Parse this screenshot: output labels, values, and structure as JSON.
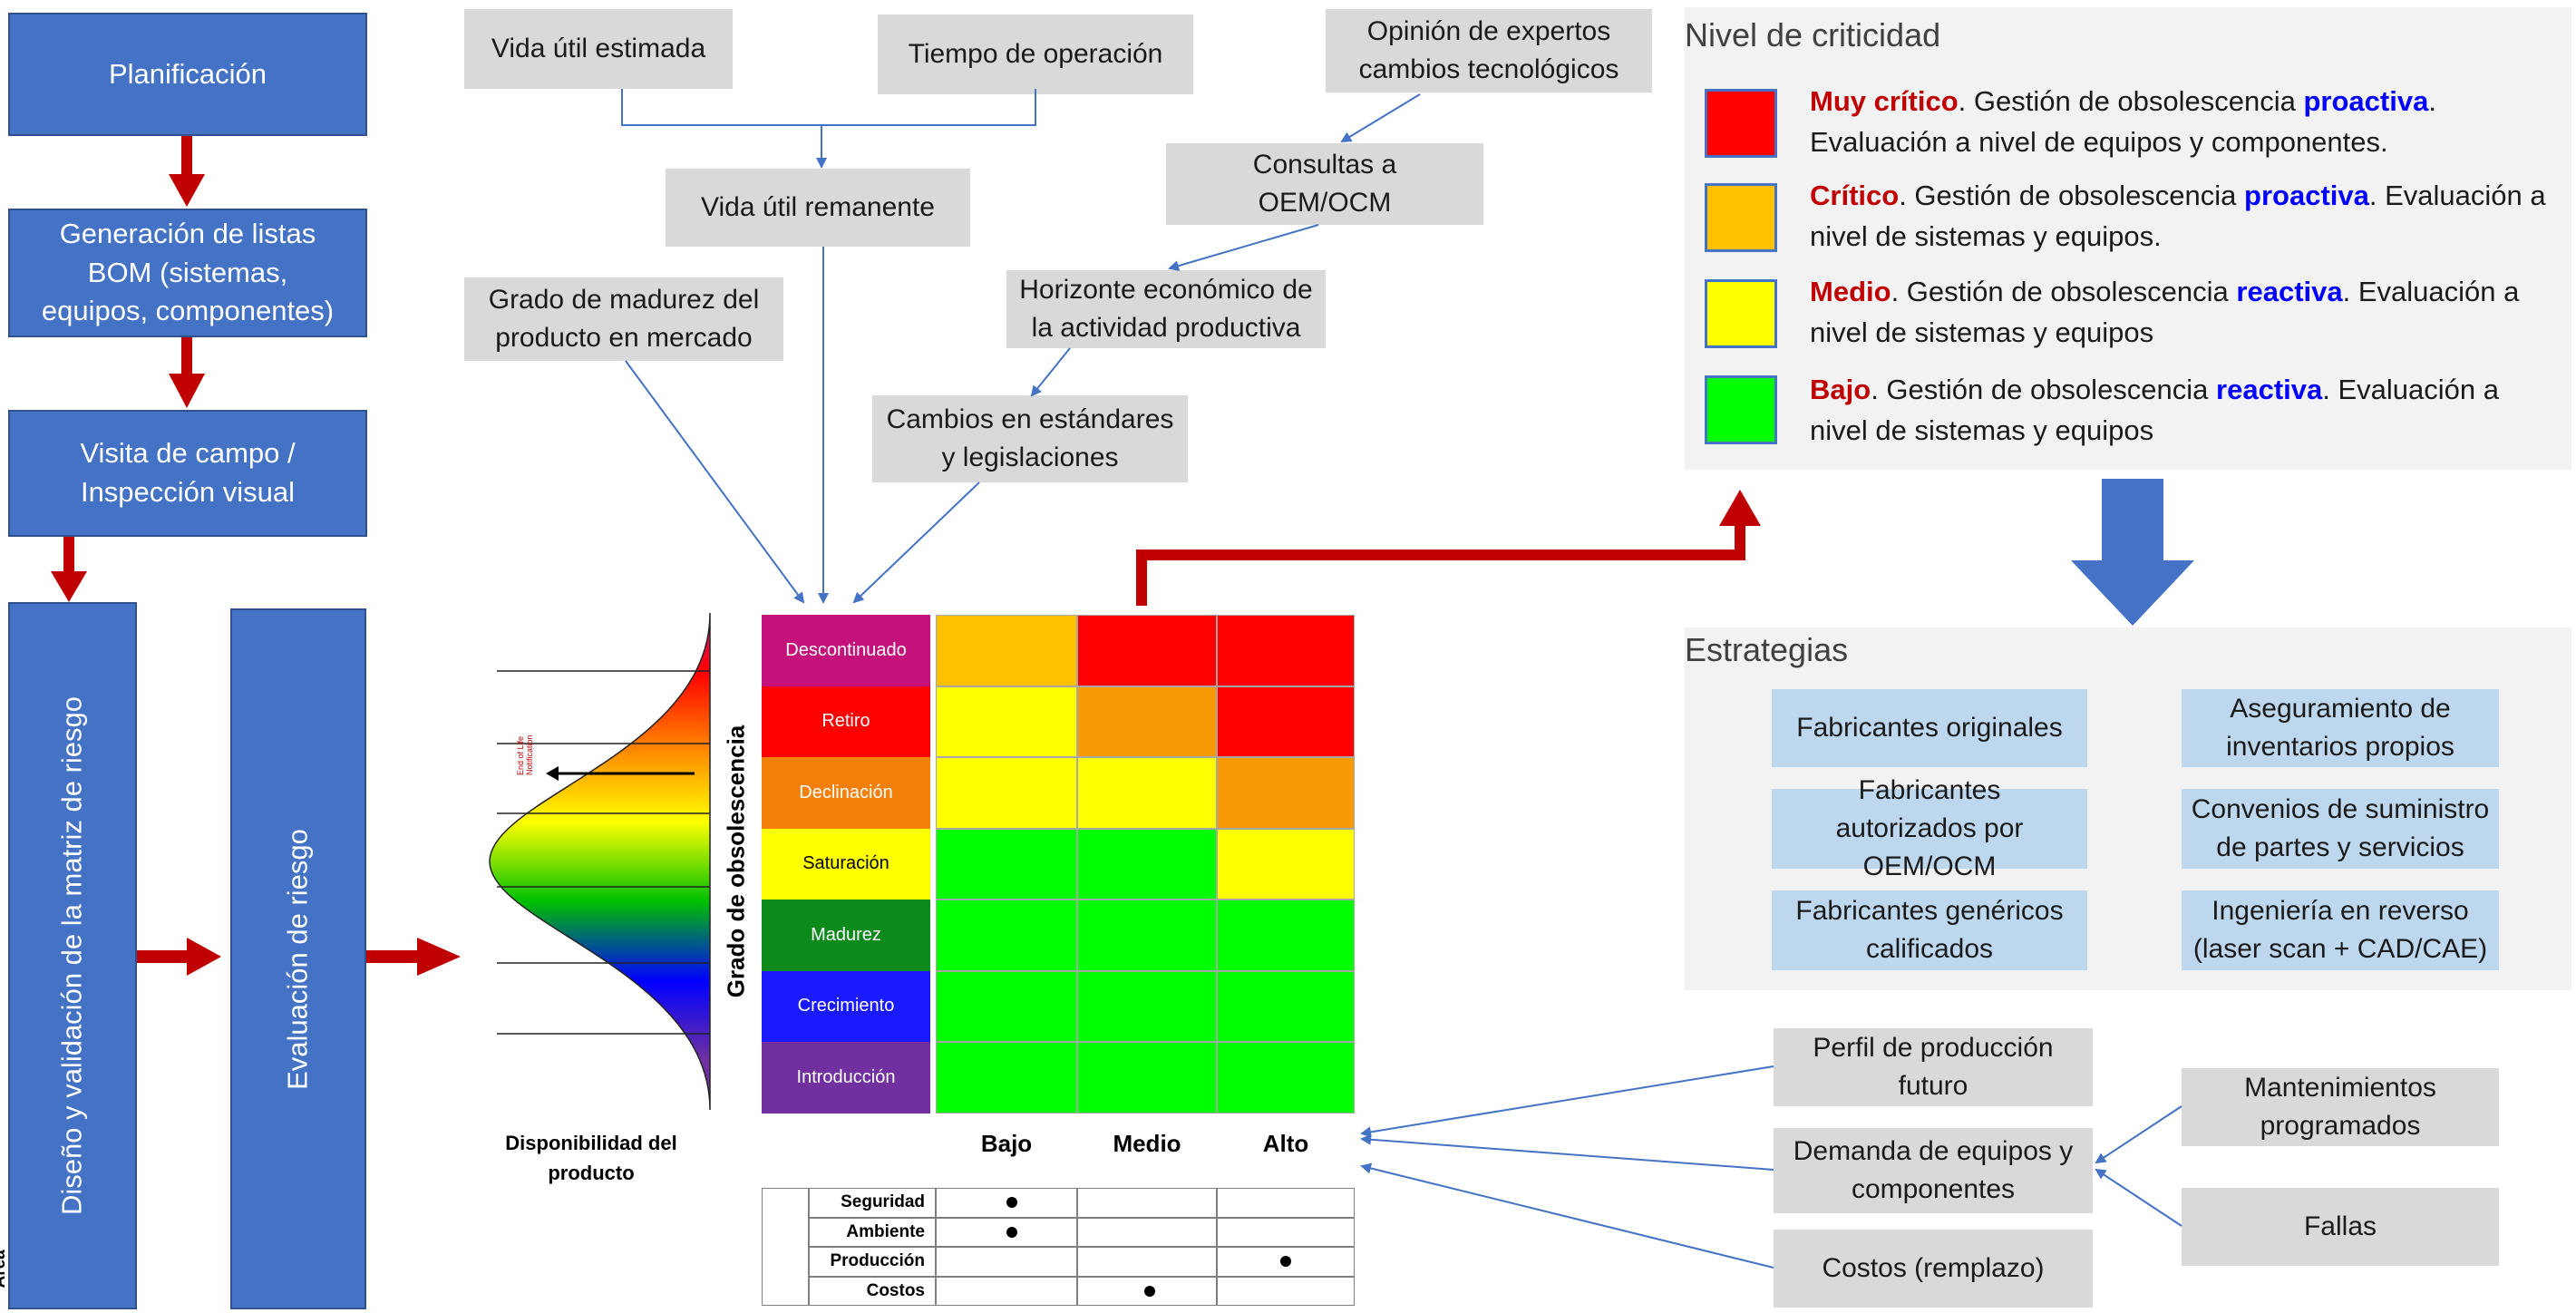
{
  "process": {
    "planificacion": "Planificación",
    "bom": "Generación de listas BOM (sistemas, equipos, componentes)",
    "visita": "Visita de campo / Inspección visual",
    "diseno": "Diseño y validación de la matriz de riesgo",
    "evaluacion": "Evaluación de riesgo"
  },
  "inputs": {
    "vida_util_estimada": "Vida útil estimada",
    "tiempo_operacion": "Tiempo de operación",
    "opinion_expertos": "Opinión de expertos cambios tecnológicos",
    "vida_util_remanente": "Vida útil remanente",
    "consultas_oem": "Consultas a OEM/OCM",
    "grado_madurez": "Grado de madurez del producto en mercado",
    "horizonte": "Horizonte económico de la actividad productiva",
    "cambios_estandares": "Cambios en estándares y legislaciones"
  },
  "availability_curve": {
    "label": "Disponibilidad del producto",
    "eol_label": "End of Life Notification"
  },
  "matrix": {
    "y_axis_label": "Grado de obsolescencia",
    "rows": [
      "Descontinuado",
      "Retiro",
      "Declinación",
      "Saturación",
      "Madurez",
      "Crecimiento",
      "Introducción"
    ],
    "row_colors": [
      "#c4127a",
      "#ff0000",
      "#f4800a",
      "#ffff00",
      "#0c8a1c",
      "#1a1aff",
      "#7030a0"
    ],
    "columns": [
      "Bajo",
      "Medio",
      "Alto"
    ],
    "cells": [
      [
        "#ffc000",
        "#ff0000",
        "#ff0000"
      ],
      [
        "#ffff00",
        "#f79a06",
        "#ff0000"
      ],
      [
        "#ffff00",
        "#ffff00",
        "#f79a06"
      ],
      [
        "#00ff00",
        "#00ff00",
        "#ffff00"
      ],
      [
        "#00ff00",
        "#00ff00",
        "#00ff00"
      ],
      [
        "#00ff00",
        "#00ff00",
        "#00ff00"
      ],
      [
        "#00ff00",
        "#00ff00",
        "#00ff00"
      ]
    ],
    "area_label": "Área",
    "areas": [
      "Seguridad",
      "Ambiente",
      "Producción",
      "Costos"
    ],
    "area_marks": [
      "Bajo",
      "Bajo",
      "Alto",
      "Medio"
    ]
  },
  "criticality": {
    "title": "Nivel de criticidad",
    "levels": [
      {
        "color": "#ff0000",
        "name": "Muy crítico",
        "t1": ". Gestión de obsolescencia ",
        "mode": "proactiva",
        "t2": ". Evaluación a nivel de equipos y componentes."
      },
      {
        "color": "#ffc000",
        "name": "Crítico",
        "t1": ". Gestión de obsolescencia ",
        "mode": "proactiva",
        "t2": ". Evaluación a nivel de sistemas y equipos."
      },
      {
        "color": "#ffff00",
        "name": "Medio",
        "t1": ". Gestión de obsolescencia ",
        "mode": "reactiva",
        "t2": ". Evaluación a nivel de sistemas y equipos"
      },
      {
        "color": "#00ff00",
        "name": "Bajo",
        "t1": ". Gestión de obsolescencia ",
        "mode": "reactiva",
        "t2": ". Evaluación a nivel de sistemas y equipos"
      }
    ]
  },
  "strategies": {
    "title": "Estrategias",
    "items": [
      "Fabricantes originales",
      "Aseguramiento de inventarios propios",
      "Fabricantes autorizados por OEM/OCM",
      "Convenios de suministro de partes y servicios",
      "Fabricantes genéricos calificados",
      "Ingeniería en reverso (laser scan + CAD/CAE)"
    ]
  },
  "factors": {
    "perfil": "Perfil de producción futuro",
    "demanda": "Demanda de equipos y componentes",
    "costos": "Costos (remplazo)",
    "mantenimientos": "Mantenimientos programados",
    "fallas": "Fallas"
  }
}
